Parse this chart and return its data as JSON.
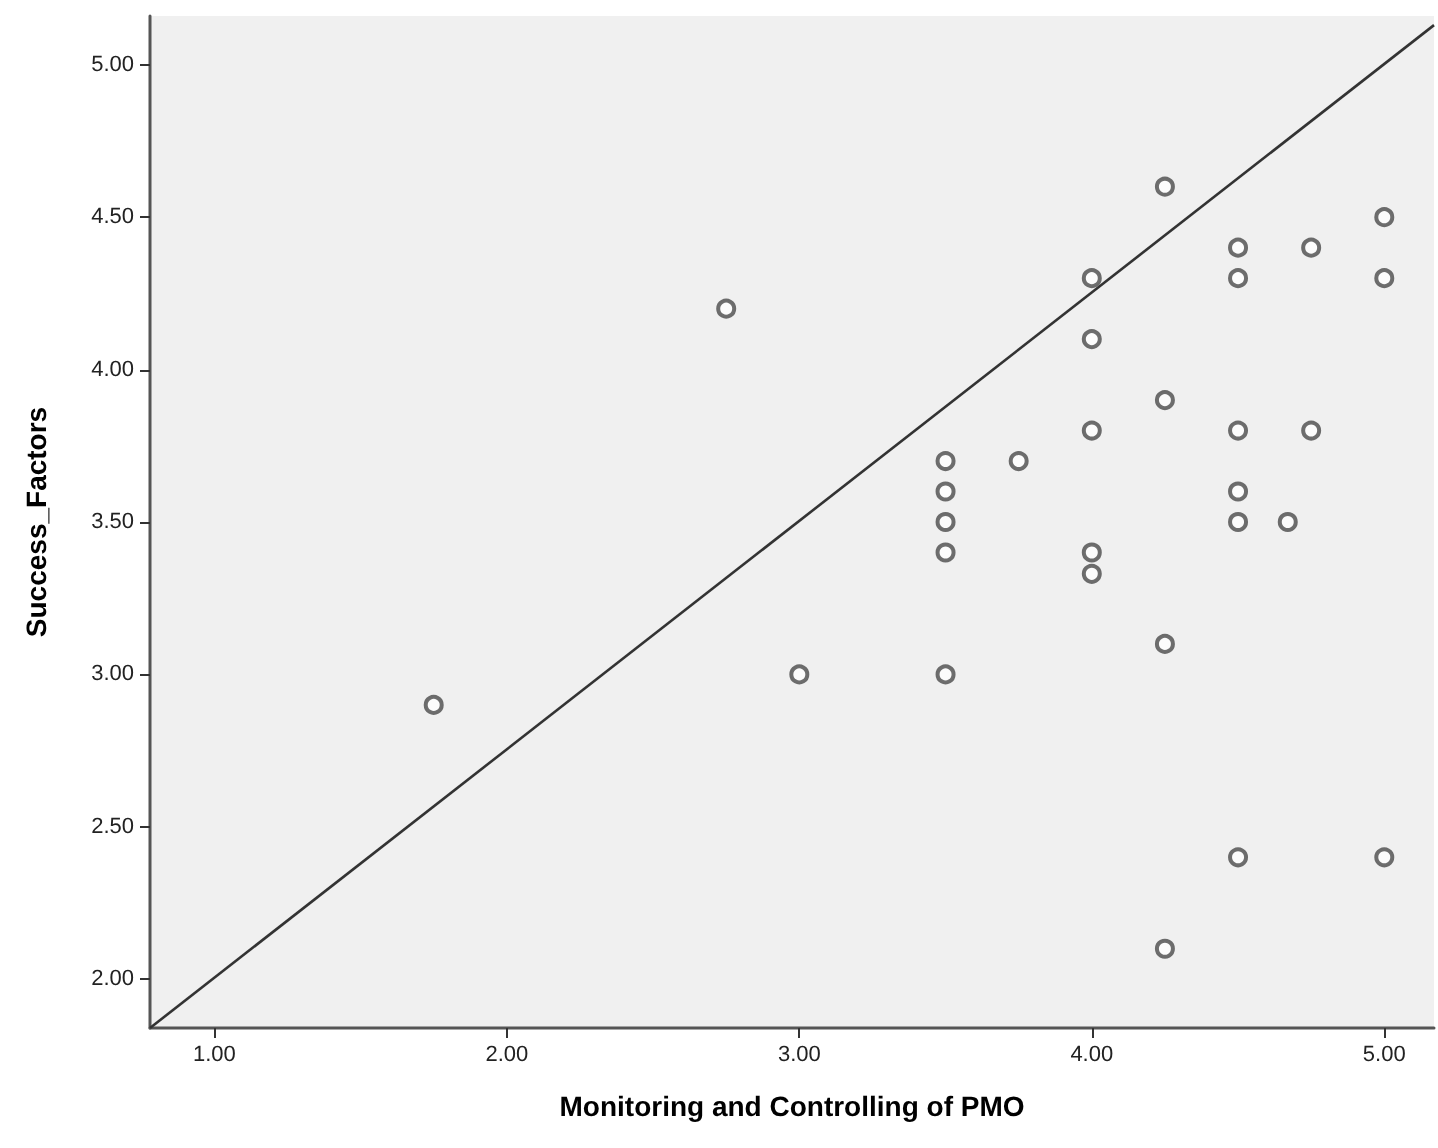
{
  "chart_data": {
    "type": "scatter",
    "xlabel": "Monitoring and Controlling of PMO",
    "ylabel": "Success_Factors",
    "xlim": [
      0.78,
      5.17
    ],
    "ylim": [
      1.84,
      5.16
    ],
    "xticks": [
      {
        "value": 1,
        "label": "1.00"
      },
      {
        "value": 2,
        "label": "2.00"
      },
      {
        "value": 3,
        "label": "3.00"
      },
      {
        "value": 4,
        "label": "4.00"
      },
      {
        "value": 5,
        "label": "5.00"
      }
    ],
    "yticks": [
      {
        "value": 2,
        "label": "2.00"
      },
      {
        "value": 2.5,
        "label": "2.50"
      },
      {
        "value": 3,
        "label": "3.00"
      },
      {
        "value": 3.5,
        "label": "3.50"
      },
      {
        "value": 4,
        "label": "4.00"
      },
      {
        "value": 4.5,
        "label": "4.50"
      },
      {
        "value": 5,
        "label": "5.00"
      }
    ],
    "grid": false,
    "marker": "circle",
    "series": [
      {
        "color": "#4a4a4a",
        "x": [
          1.75,
          2.75,
          3.0,
          3.5,
          3.5,
          3.5,
          3.5,
          3.5,
          3.75,
          4.0,
          4.0,
          4.0,
          4.0,
          4.0,
          4.25,
          4.25,
          4.25,
          4.25,
          4.5,
          4.5,
          4.5,
          4.5,
          4.5,
          4.5,
          4.67,
          4.75,
          4.75,
          5.0,
          5.0,
          5.0
        ],
        "values": [
          2.9,
          4.2,
          3.0,
          3.0,
          3.4,
          3.5,
          3.6,
          3.7,
          3.7,
          4.3,
          4.1,
          3.8,
          3.4,
          3.33,
          4.6,
          3.9,
          3.1,
          2.1,
          4.4,
          4.3,
          3.8,
          3.6,
          3.5,
          2.4,
          3.5,
          4.4,
          3.8,
          4.5,
          4.3,
          2.4
        ]
      },
      {
        "type": "line",
        "color": "#333333",
        "marker": "none",
        "x": [
          0.78,
          5.17
        ],
        "values": [
          1.84,
          5.13
        ]
      }
    ]
  }
}
